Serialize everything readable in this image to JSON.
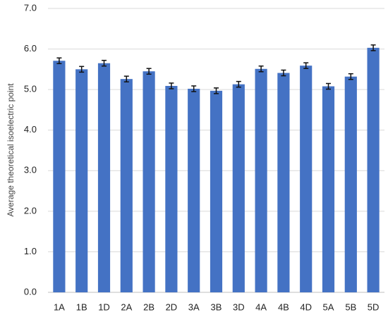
{
  "chart_data": {
    "type": "bar",
    "y_label": "Average theoretical isoelectric point",
    "categories": [
      "1A",
      "1B",
      "1D",
      "2A",
      "2B",
      "2D",
      "3A",
      "3B",
      "3D",
      "4A",
      "4B",
      "4D",
      "5A",
      "5B",
      "5D"
    ],
    "values": [
      5.71,
      5.5,
      5.65,
      5.26,
      5.45,
      5.09,
      5.02,
      4.97,
      5.13,
      5.51,
      5.41,
      5.59,
      5.08,
      5.32,
      6.03
    ],
    "errors": [
      0.07,
      0.07,
      0.07,
      0.07,
      0.07,
      0.07,
      0.07,
      0.07,
      0.07,
      0.07,
      0.07,
      0.07,
      0.07,
      0.07,
      0.07
    ],
    "color": "#4472c4",
    "ylim": [
      0,
      7
    ],
    "yticks": [
      {
        "value": 0,
        "label": "0.0"
      },
      {
        "value": 1,
        "label": "1.0"
      },
      {
        "value": 2,
        "label": "2.0"
      },
      {
        "value": 3,
        "label": "3.0"
      },
      {
        "value": 4,
        "label": "4.0"
      },
      {
        "value": 5,
        "label": "5.0"
      },
      {
        "value": 6,
        "label": "6.0"
      },
      {
        "value": 7,
        "label": "7.0"
      }
    ],
    "grid": true
  }
}
